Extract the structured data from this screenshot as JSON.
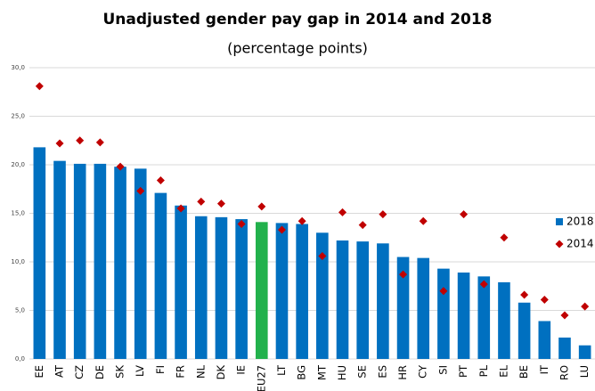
{
  "chart_data": {
    "type": "bar",
    "title": "Unadjusted gender pay gap in 2014 and 2018",
    "subtitle": "(percentage points)",
    "categories": [
      "EE",
      "AT",
      "CZ",
      "DE",
      "SK",
      "LV",
      "FI",
      "FR",
      "NL",
      "DK",
      "IE",
      "EU27",
      "LT",
      "BG",
      "MT",
      "HU",
      "SE",
      "ES",
      "HR",
      "CY",
      "SI",
      "PT",
      "PL",
      "EL",
      "BE",
      "IT",
      "RO",
      "LU"
    ],
    "series": [
      {
        "name": "2018",
        "color": "#0070c0",
        "marker": "bar",
        "bar_colors": [
          "#0070c0",
          "#0070c0",
          "#0070c0",
          "#0070c0",
          "#0070c0",
          "#0070c0",
          "#0070c0",
          "#0070c0",
          "#0070c0",
          "#0070c0",
          "#0070c0",
          "#22b14c",
          "#0070c0",
          "#0070c0",
          "#0070c0",
          "#0070c0",
          "#0070c0",
          "#0070c0",
          "#0070c0",
          "#0070c0",
          "#0070c0",
          "#0070c0",
          "#0070c0",
          "#0070c0",
          "#0070c0",
          "#0070c0",
          "#0070c0",
          "#0070c0"
        ],
        "values": [
          21.8,
          20.4,
          20.1,
          20.1,
          19.8,
          19.6,
          17.1,
          15.8,
          14.7,
          14.6,
          14.4,
          14.1,
          14.0,
          13.9,
          13.0,
          12.2,
          12.1,
          11.9,
          10.5,
          10.4,
          9.3,
          8.9,
          8.5,
          7.9,
          5.8,
          3.9,
          2.2,
          1.4
        ]
      },
      {
        "name": "2014",
        "color": "#c00000",
        "marker": "diamond",
        "values": [
          28.1,
          22.2,
          22.5,
          22.3,
          19.8,
          17.3,
          18.4,
          15.5,
          16.2,
          16.0,
          13.9,
          15.7,
          13.3,
          14.2,
          10.6,
          15.1,
          13.8,
          14.9,
          8.7,
          14.2,
          7.0,
          14.9,
          7.7,
          12.5,
          6.6,
          6.1,
          4.5,
          5.4
        ]
      }
    ],
    "ylim": [
      0,
      30
    ],
    "yticks": [
      {
        "value": 0,
        "label": "0,0"
      },
      {
        "value": 5,
        "label": "5,0"
      },
      {
        "value": 10,
        "label": "10,0"
      },
      {
        "value": 15,
        "label": "15,0"
      },
      {
        "value": 20,
        "label": "20,0"
      },
      {
        "value": 25,
        "label": "25,0"
      },
      {
        "value": 30,
        "label": "30,0"
      }
    ],
    "grid": true,
    "legend": "right"
  }
}
